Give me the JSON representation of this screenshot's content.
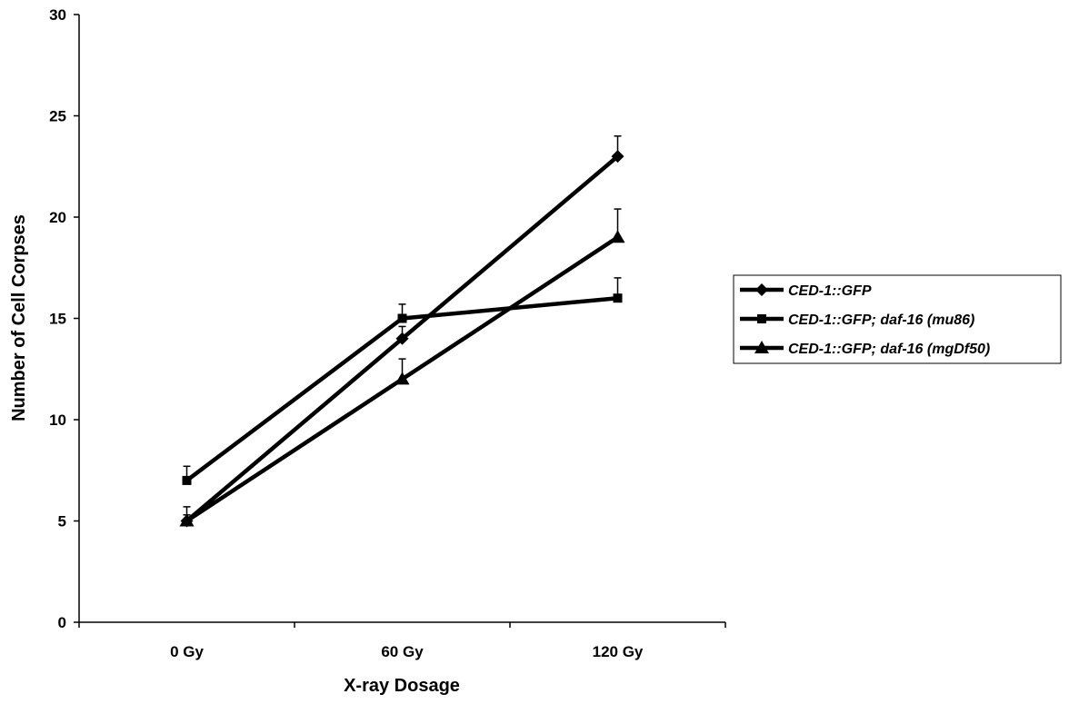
{
  "chart_data": {
    "type": "line",
    "xlabel": "X-ray Dosage",
    "ylabel": "Number of Cell Corpses",
    "categories": [
      "0 Gy",
      "60 Gy",
      "120 Gy"
    ],
    "ylim": [
      0,
      30
    ],
    "yticks": [
      0,
      5,
      10,
      15,
      20,
      25,
      30
    ],
    "grid": false,
    "legend_position": "right",
    "series": [
      {
        "name": "CED-1::GFP",
        "marker": "diamond",
        "values": [
          5,
          14,
          23
        ],
        "errors": [
          0.7,
          0.6,
          1.0
        ]
      },
      {
        "name": "CED-1::GFP; daf-16 (mu86)",
        "marker": "square",
        "values": [
          7,
          15,
          16
        ],
        "errors": [
          0.7,
          0.7,
          1.0
        ]
      },
      {
        "name": "CED-1::GFP; daf-16 (mgDf50)",
        "marker": "triangle",
        "values": [
          5,
          12,
          19
        ],
        "errors": [
          0.3,
          1.0,
          1.4
        ]
      }
    ],
    "line_color": "#000000"
  }
}
